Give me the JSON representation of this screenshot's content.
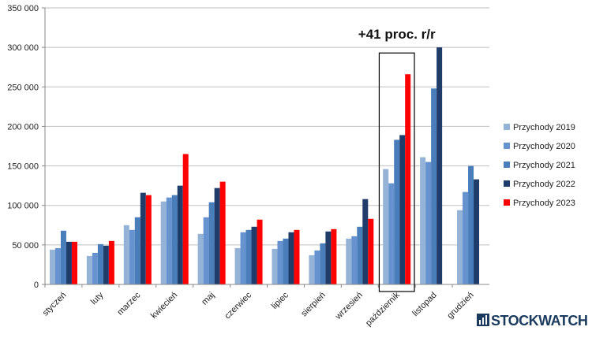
{
  "chart_data": {
    "type": "bar",
    "categories": [
      "styczeń",
      "luty",
      "marzec",
      "kwiecień",
      "maj",
      "czerwiec",
      "lipiec",
      "sierpień",
      "wrzesień",
      "październik",
      "listopad",
      "grudzień"
    ],
    "series": [
      {
        "name": "Przychody 2019",
        "color": "#95b3d7",
        "values": [
          44000,
          36000,
          75000,
          105000,
          64000,
          46000,
          45000,
          37000,
          58000,
          146000,
          161000,
          94000
        ]
      },
      {
        "name": "Przychody 2020",
        "color": "#6693d0",
        "values": [
          46000,
          40000,
          69000,
          110000,
          85000,
          66000,
          55000,
          43000,
          61000,
          128000,
          155000,
          117000
        ]
      },
      {
        "name": "Przychody 2021",
        "color": "#4a7ebb",
        "values": [
          68000,
          51000,
          85000,
          113000,
          104000,
          69000,
          58000,
          52000,
          73000,
          183000,
          248000,
          150000
        ]
      },
      {
        "name": "Przychody 2022",
        "color": "#1f3c6b",
        "values": [
          54000,
          49000,
          116000,
          125000,
          122000,
          73000,
          66000,
          67000,
          108000,
          189000,
          300000,
          133000
        ]
      },
      {
        "name": "Przychody 2023",
        "color": "#ff0000",
        "values": [
          54000,
          55000,
          113000,
          165000,
          130000,
          82000,
          69000,
          70000,
          83000,
          266000,
          null,
          null
        ]
      }
    ],
    "ylim": [
      0,
      350000
    ],
    "yticks": [
      "0",
      "50 000",
      "100 000",
      "150 000",
      "200 000",
      "250 000",
      "300 000",
      "350 000"
    ],
    "grid": true,
    "legend_position": "right",
    "annotation": {
      "text": "+41 proc. r/r",
      "category": "październik"
    }
  },
  "brand": {
    "name": "STOCKWATCH"
  }
}
